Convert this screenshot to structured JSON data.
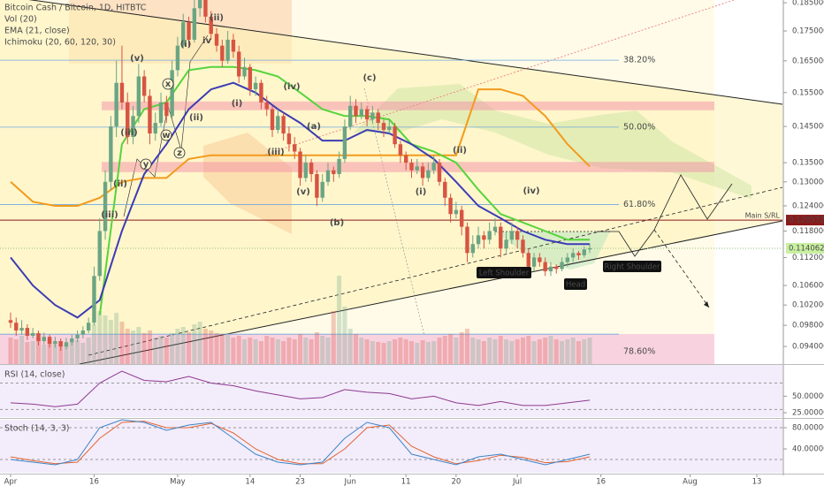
{
  "chart_data": {
    "type": "candlestick",
    "title": "Bitcoin Cash / Bitcoin, 1D, HITBTC",
    "indicators": [
      "Vol (20)",
      "EMA (21, close)",
      "Ichimoku (20, 60, 120, 30)"
    ],
    "log_scale": true,
    "grid": false,
    "up_color": "#6ba583",
    "down_color": "#d75442",
    "xlim": [
      -1.9,
      138.6
    ],
    "xticks": [
      {
        "value": 0,
        "label": "Apr"
      },
      {
        "value": 15,
        "label": "16"
      },
      {
        "value": 30,
        "label": "May"
      },
      {
        "value": 43,
        "label": "14"
      },
      {
        "value": 52,
        "label": "23"
      },
      {
        "value": 61,
        "label": "Jun"
      },
      {
        "value": 71,
        "label": "11"
      },
      {
        "value": 80,
        "label": "20"
      },
      {
        "value": 91,
        "label": "Jul"
      },
      {
        "value": 106,
        "label": "16"
      },
      {
        "value": 122,
        "label": "Aug"
      },
      {
        "value": 134,
        "label": "13"
      }
    ],
    "ylim": [
      0.0908,
      0.186
    ],
    "yticks": [
      {
        "value": 0.185,
        "label": "0.185000"
      },
      {
        "value": 0.175,
        "label": "0.175000"
      },
      {
        "value": 0.165,
        "label": "0.165000"
      },
      {
        "value": 0.155,
        "label": "0.155000"
      },
      {
        "value": 0.145,
        "label": "0.145000"
      },
      {
        "value": 0.135,
        "label": "0.135000"
      },
      {
        "value": 0.13,
        "label": "0.130000"
      },
      {
        "value": 0.124,
        "label": "0.124000"
      },
      {
        "value": 0.118,
        "label": "0.118000"
      },
      {
        "value": 0.112,
        "label": "0.112000"
      },
      {
        "value": 0.106,
        "label": "0.106000"
      },
      {
        "value": 0.102,
        "label": "0.102000"
      },
      {
        "value": 0.098,
        "label": "0.098000"
      },
      {
        "value": 0.094,
        "label": "0.094000"
      }
    ],
    "ohlc": [
      [
        0.099,
        0.1005,
        0.0975,
        0.0985
      ],
      [
        0.0985,
        0.0995,
        0.096,
        0.097
      ],
      [
        0.097,
        0.099,
        0.0962,
        0.0975
      ],
      [
        0.0975,
        0.0982,
        0.0952,
        0.096
      ],
      [
        0.096,
        0.0975,
        0.0955,
        0.0965
      ],
      [
        0.0965,
        0.097,
        0.0942,
        0.095
      ],
      [
        0.095,
        0.0966,
        0.0944,
        0.0958
      ],
      [
        0.0958,
        0.0962,
        0.0938,
        0.0945
      ],
      [
        0.0945,
        0.0958,
        0.0938,
        0.095
      ],
      [
        0.095,
        0.0955,
        0.0932,
        0.094
      ],
      [
        0.094,
        0.0956,
        0.0935,
        0.0948
      ],
      [
        0.0948,
        0.0962,
        0.0942,
        0.0955
      ],
      [
        0.0955,
        0.097,
        0.0948,
        0.0962
      ],
      [
        0.0962,
        0.0978,
        0.0955,
        0.097
      ],
      [
        0.097,
        0.0995,
        0.0965,
        0.0985
      ],
      [
        0.0985,
        0.11,
        0.098,
        0.108
      ],
      [
        0.108,
        0.121,
        0.107,
        0.118
      ],
      [
        0.118,
        0.133,
        0.116,
        0.13
      ],
      [
        0.13,
        0.148,
        0.128,
        0.145
      ],
      [
        0.145,
        0.165,
        0.142,
        0.158
      ],
      [
        0.158,
        0.17,
        0.15,
        0.152
      ],
      [
        0.152,
        0.155,
        0.14,
        0.142
      ],
      [
        0.142,
        0.151,
        0.14,
        0.148
      ],
      [
        0.148,
        0.164,
        0.146,
        0.16
      ],
      [
        0.16,
        0.162,
        0.152,
        0.154
      ],
      [
        0.154,
        0.156,
        0.14,
        0.143
      ],
      [
        0.143,
        0.149,
        0.141,
        0.146
      ],
      [
        0.146,
        0.155,
        0.145,
        0.152
      ],
      [
        0.152,
        0.154,
        0.146,
        0.148
      ],
      [
        0.148,
        0.165,
        0.147,
        0.162
      ],
      [
        0.162,
        0.173,
        0.16,
        0.17
      ],
      [
        0.17,
        0.181,
        0.169,
        0.178
      ],
      [
        0.178,
        0.18,
        0.17,
        0.172
      ],
      [
        0.172,
        0.186,
        0.171,
        0.183
      ],
      [
        0.183,
        0.188,
        0.18,
        0.186
      ],
      [
        0.186,
        0.187,
        0.178,
        0.18
      ],
      [
        0.18,
        0.182,
        0.172,
        0.174
      ],
      [
        0.174,
        0.176,
        0.168,
        0.17
      ],
      [
        0.17,
        0.172,
        0.163,
        0.165
      ],
      [
        0.165,
        0.175,
        0.164,
        0.172
      ],
      [
        0.172,
        0.174,
        0.166,
        0.168
      ],
      [
        0.168,
        0.17,
        0.158,
        0.16
      ],
      [
        0.16,
        0.166,
        0.159,
        0.163
      ],
      [
        0.163,
        0.164,
        0.154,
        0.156
      ],
      [
        0.156,
        0.16,
        0.154,
        0.158
      ],
      [
        0.158,
        0.159,
        0.15,
        0.152
      ],
      [
        0.152,
        0.154,
        0.148,
        0.15
      ],
      [
        0.15,
        0.151,
        0.142,
        0.144
      ],
      [
        0.144,
        0.15,
        0.143,
        0.148
      ],
      [
        0.148,
        0.149,
        0.141,
        0.143
      ],
      [
        0.143,
        0.145,
        0.138,
        0.14
      ],
      [
        0.14,
        0.142,
        0.136,
        0.138
      ],
      [
        0.138,
        0.139,
        0.129,
        0.131
      ],
      [
        0.131,
        0.137,
        0.13,
        0.135
      ],
      [
        0.135,
        0.136,
        0.13,
        0.132
      ],
      [
        0.132,
        0.133,
        0.124,
        0.126
      ],
      [
        0.126,
        0.132,
        0.125,
        0.13
      ],
      [
        0.13,
        0.135,
        0.129,
        0.133
      ],
      [
        0.133,
        0.134,
        0.13,
        0.132
      ],
      [
        0.132,
        0.138,
        0.131,
        0.136
      ],
      [
        0.136,
        0.147,
        0.135,
        0.145
      ],
      [
        0.145,
        0.154,
        0.144,
        0.151
      ],
      [
        0.151,
        0.153,
        0.146,
        0.148
      ],
      [
        0.148,
        0.152,
        0.147,
        0.15
      ],
      [
        0.15,
        0.151,
        0.145,
        0.147
      ],
      [
        0.147,
        0.151,
        0.146,
        0.149
      ],
      [
        0.149,
        0.15,
        0.144,
        0.146
      ],
      [
        0.146,
        0.147,
        0.142,
        0.144
      ],
      [
        0.144,
        0.147,
        0.143,
        0.145
      ],
      [
        0.145,
        0.146,
        0.139,
        0.14
      ],
      [
        0.14,
        0.141,
        0.135,
        0.137
      ],
      [
        0.137,
        0.138,
        0.133,
        0.135
      ],
      [
        0.135,
        0.136,
        0.131,
        0.133
      ],
      [
        0.133,
        0.136,
        0.132,
        0.134
      ],
      [
        0.134,
        0.135,
        0.129,
        0.131
      ],
      [
        0.131,
        0.135,
        0.13,
        0.133
      ],
      [
        0.133,
        0.137,
        0.132,
        0.135
      ],
      [
        0.135,
        0.136,
        0.129,
        0.13
      ],
      [
        0.13,
        0.131,
        0.124,
        0.126
      ],
      [
        0.126,
        0.127,
        0.12,
        0.122
      ],
      [
        0.122,
        0.125,
        0.121,
        0.123
      ],
      [
        0.123,
        0.124,
        0.117,
        0.119
      ],
      [
        0.119,
        0.12,
        0.111,
        0.113
      ],
      [
        0.113,
        0.117,
        0.112,
        0.115
      ],
      [
        0.115,
        0.119,
        0.114,
        0.117
      ],
      [
        0.117,
        0.118,
        0.114,
        0.116
      ],
      [
        0.116,
        0.12,
        0.115,
        0.118
      ],
      [
        0.118,
        0.121,
        0.117,
        0.119
      ],
      [
        0.119,
        0.12,
        0.112,
        0.114
      ],
      [
        0.114,
        0.118,
        0.113,
        0.116
      ],
      [
        0.116,
        0.12,
        0.115,
        0.118
      ],
      [
        0.118,
        0.119,
        0.114,
        0.116
      ],
      [
        0.116,
        0.117,
        0.112,
        0.113
      ],
      [
        0.113,
        0.114,
        0.109,
        0.11
      ],
      [
        0.11,
        0.113,
        0.109,
        0.112
      ],
      [
        0.112,
        0.113,
        0.11,
        0.111
      ],
      [
        0.111,
        0.112,
        0.108,
        0.109
      ],
      [
        0.109,
        0.111,
        0.108,
        0.11
      ],
      [
        0.11,
        0.1105,
        0.1085,
        0.1095
      ],
      [
        0.1095,
        0.112,
        0.109,
        0.111
      ],
      [
        0.111,
        0.113,
        0.11,
        0.112
      ],
      [
        0.112,
        0.114,
        0.111,
        0.113
      ],
      [
        0.113,
        0.1135,
        0.1115,
        0.1125
      ],
      [
        0.1125,
        0.1145,
        0.112,
        0.1138
      ],
      [
        0.1138,
        0.115,
        0.113,
        0.114062
      ]
    ],
    "volume": [
      30,
      28,
      32,
      25,
      26,
      30,
      22,
      28,
      24,
      26,
      22,
      25,
      27,
      24,
      30,
      45,
      60,
      55,
      50,
      58,
      48,
      40,
      38,
      42,
      35,
      38,
      30,
      32,
      30,
      35,
      40,
      42,
      36,
      45,
      48,
      40,
      38,
      35,
      34,
      33,
      30,
      32,
      28,
      30,
      28,
      26,
      32,
      30,
      28,
      26,
      30,
      28,
      34,
      30,
      28,
      36,
      32,
      30,
      60,
      100,
      65,
      40,
      34,
      30,
      28,
      26,
      25,
      24,
      26,
      28,
      30,
      28,
      26,
      24,
      27,
      25,
      26,
      30,
      32,
      34,
      30,
      36,
      40,
      30,
      28,
      26,
      30,
      28,
      32,
      28,
      26,
      28,
      30,
      32,
      26,
      28,
      30,
      32,
      28,
      26,
      28,
      30,
      26,
      28,
      30
    ],
    "ema": {
      "color": "#3c3cb4",
      "x": [
        0,
        4,
        8,
        12,
        16,
        20,
        24,
        28,
        32,
        36,
        40,
        44,
        48,
        52,
        56,
        60,
        64,
        68,
        72,
        76,
        80,
        84,
        88,
        92,
        96,
        100,
        104
      ],
      "values": [
        0.112,
        0.106,
        0.102,
        0.0995,
        0.103,
        0.118,
        0.132,
        0.14,
        0.15,
        0.156,
        0.158,
        0.155,
        0.15,
        0.146,
        0.141,
        0.141,
        0.144,
        0.143,
        0.14,
        0.136,
        0.13,
        0.124,
        0.121,
        0.118,
        0.116,
        0.115,
        0.115
      ]
    },
    "conversion_line": {
      "color": "#55d43c",
      "x": [
        16,
        20,
        24,
        28,
        32,
        36,
        40,
        44,
        48,
        52,
        56,
        60,
        64,
        68,
        72,
        76,
        80,
        84,
        88,
        92,
        96,
        100,
        104
      ],
      "values": [
        0.1,
        0.14,
        0.15,
        0.152,
        0.162,
        0.163,
        0.163,
        0.162,
        0.16,
        0.155,
        0.15,
        0.148,
        0.148,
        0.147,
        0.14,
        0.138,
        0.135,
        0.128,
        0.122,
        0.12,
        0.118,
        0.116,
        0.116
      ]
    },
    "base_line": {
      "color": "#f29b1d",
      "x": [
        0,
        4,
        8,
        12,
        16,
        20,
        24,
        28,
        32,
        36,
        40,
        44,
        48,
        52,
        56,
        60,
        64,
        68,
        72,
        76,
        80,
        84,
        88,
        92,
        96,
        100,
        104
      ],
      "values": [
        0.13,
        0.125,
        0.124,
        0.124,
        0.126,
        0.13,
        0.131,
        0.131,
        0.136,
        0.137,
        0.137,
        0.137,
        0.137,
        0.137,
        0.137,
        0.137,
        0.137,
        0.137,
        0.137,
        0.137,
        0.137,
        0.156,
        0.156,
        0.154,
        0.148,
        0.14,
        0.134
      ]
    },
    "fib_levels": [
      {
        "price": 0.1652,
        "label": "38.20%"
      },
      {
        "price": 0.1448,
        "label": "50.00%"
      },
      {
        "price": 0.1243,
        "label": "61.80%"
      },
      {
        "price": 0.0963,
        "label": "78.60%"
      }
    ],
    "zones": [
      [
        0.1497,
        0.1523
      ],
      [
        0.1325,
        0.1352
      ]
    ],
    "main_sr": {
      "label": "Main S/RL",
      "value": 0.120572
    },
    "last_price": 0.114062,
    "pattern_labels": [
      "Left Shoulder",
      "Head",
      "Right Shoulder"
    ],
    "annotations": [
      "(ii)",
      "(i)",
      "(iii)",
      "(iv)",
      "(v)",
      "(a)",
      "(b)",
      "(c)",
      "(i)",
      "(ii)",
      "(iv)",
      "(i)",
      "(ii)",
      "(iii)",
      "iv",
      "(v)",
      "x",
      "w",
      "y",
      "z",
      "(iii)",
      "(ii)"
    ],
    "rsi": {
      "label": "RSI (14, close)",
      "color": "#8e3a8e",
      "ylim": [
        18.4,
        97.4
      ],
      "yticks": [
        {
          "value": 50,
          "label": "50.000000"
        },
        {
          "value": 25,
          "label": "25.000000"
        }
      ],
      "bands": [
        70,
        30
      ],
      "x": [
        0,
        4,
        8,
        12,
        16,
        20,
        24,
        28,
        32,
        36,
        40,
        44,
        48,
        52,
        56,
        60,
        64,
        68,
        72,
        76,
        80,
        84,
        88,
        92,
        96,
        100,
        104
      ],
      "values": [
        40,
        38,
        34,
        38,
        70,
        88,
        74,
        72,
        80,
        70,
        66,
        58,
        52,
        46,
        48,
        60,
        56,
        54,
        46,
        50,
        40,
        36,
        42,
        36,
        36,
        40,
        44
      ]
    },
    "stoch": {
      "label": "Stoch (14, 3, 3)",
      "ylim": [
        -5,
        95
      ],
      "yticks": [
        {
          "value": 80,
          "label": "80.000000"
        },
        {
          "value": 40,
          "label": "40.000000"
        }
      ],
      "bands": [
        80,
        20
      ],
      "x": [
        0,
        4,
        8,
        12,
        16,
        20,
        24,
        28,
        32,
        36,
        40,
        44,
        48,
        52,
        56,
        60,
        64,
        68,
        72,
        76,
        80,
        84,
        88,
        92,
        96,
        100,
        104
      ],
      "k": {
        "color": "#3d85c6",
        "values": [
          20,
          15,
          10,
          20,
          80,
          95,
          90,
          75,
          85,
          90,
          60,
          30,
          15,
          10,
          15,
          60,
          90,
          80,
          30,
          20,
          10,
          25,
          30,
          20,
          10,
          20,
          30
        ]
      },
      "d": {
        "color": "#e06633",
        "values": [
          25,
          18,
          12,
          15,
          60,
          90,
          92,
          80,
          80,
          88,
          70,
          40,
          20,
          12,
          12,
          40,
          80,
          85,
          45,
          25,
          12,
          18,
          28,
          24,
          14,
          16,
          25
        ]
      }
    }
  }
}
